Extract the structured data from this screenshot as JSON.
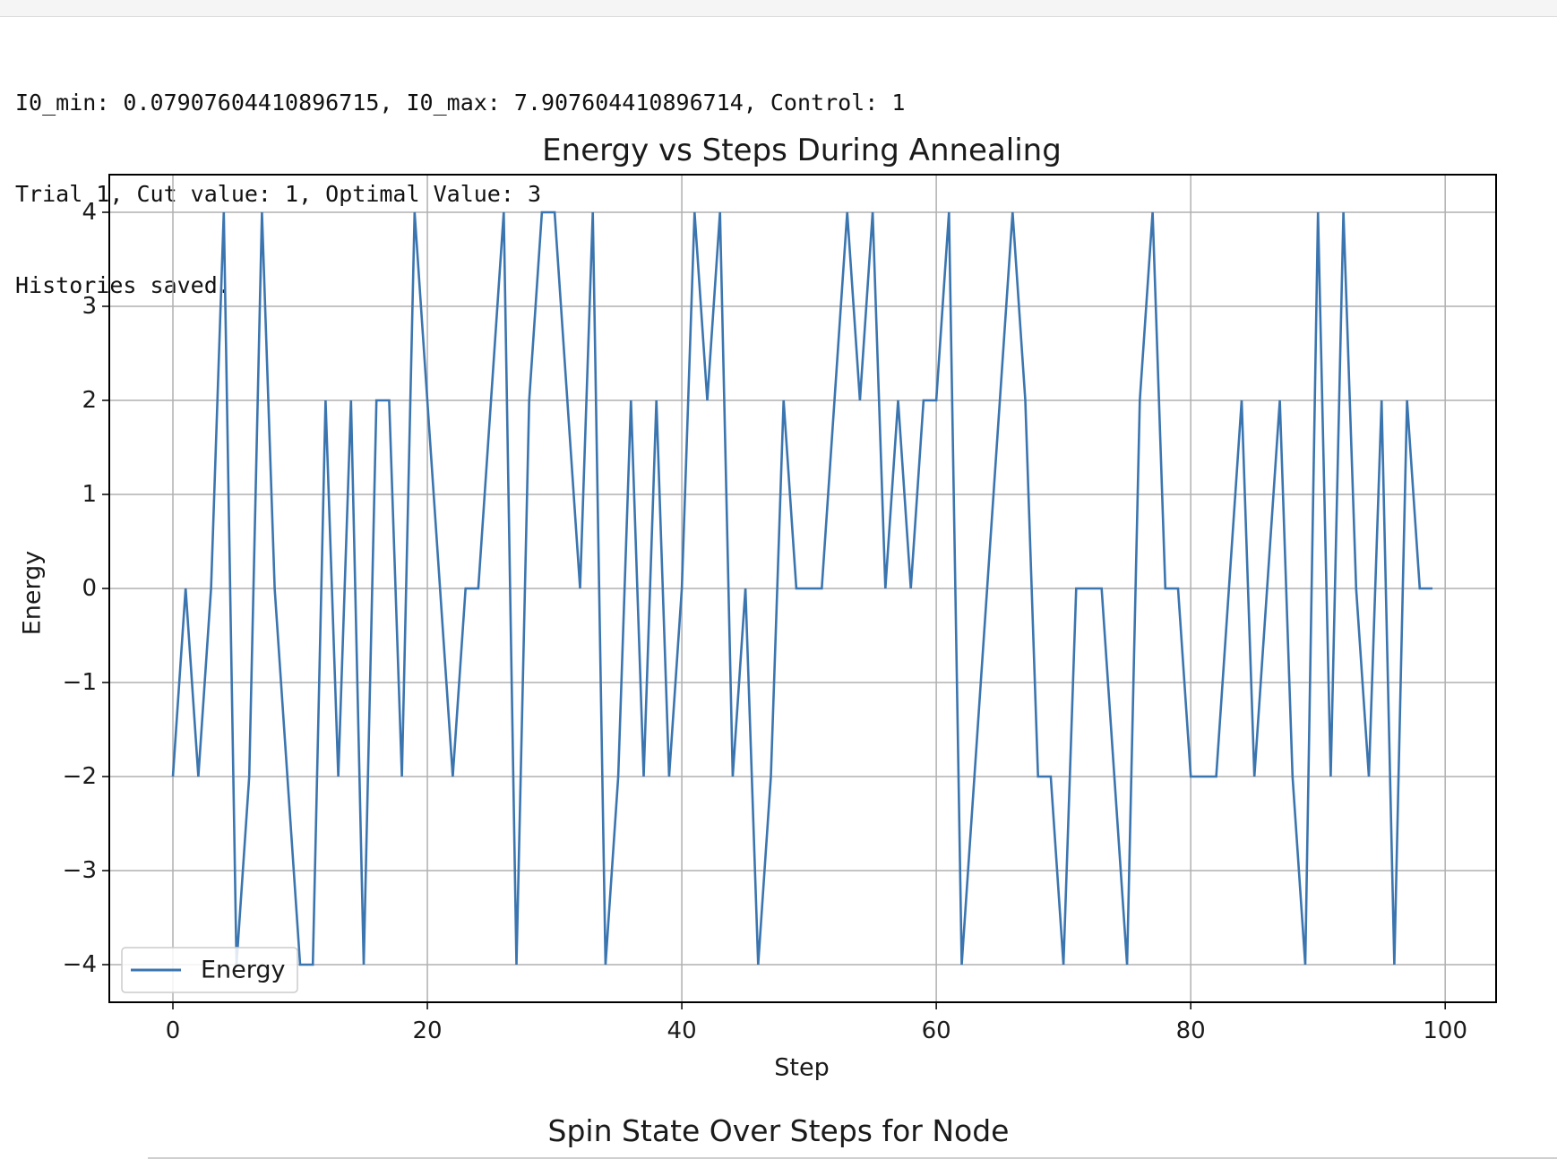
{
  "console": {
    "lines": [
      "I0_min: 0.07907604410896715, I0_max: 7.907604410896714, Control: 1",
      "Trial 1, Cut value: 1, Optimal Value: 3",
      "Histories saved."
    ]
  },
  "next_plot_title": "Spin State Over Steps for Node",
  "colors": {
    "line": "#3b75af",
    "grid": "#b0b0b0",
    "axes": "#000000"
  },
  "chart_data": {
    "type": "line",
    "title": "Energy vs Steps During Annealing",
    "xlabel": "Step",
    "ylabel": "Energy",
    "xlim": [
      -5,
      104
    ],
    "ylim": [
      -4.4,
      4.4
    ],
    "xticks": [
      0,
      20,
      40,
      60,
      80,
      100
    ],
    "xtick_labels": [
      "0",
      "20",
      "40",
      "60",
      "80",
      "100"
    ],
    "yticks": [
      4,
      3,
      2,
      1,
      0,
      -1,
      -2,
      -3,
      -4
    ],
    "ytick_labels": [
      "4",
      "3",
      "2",
      "1",
      "0",
      "−1",
      "−2",
      "−3",
      "−4"
    ],
    "grid": true,
    "legend": {
      "position": "lower-left",
      "entries": [
        "Energy"
      ]
    },
    "series": [
      {
        "name": "Energy",
        "x": [
          0,
          1,
          2,
          3,
          4,
          5,
          6,
          7,
          8,
          9,
          10,
          11,
          12,
          13,
          14,
          15,
          16,
          17,
          18,
          19,
          20,
          21,
          22,
          23,
          24,
          25,
          26,
          27,
          28,
          29,
          30,
          31,
          32,
          33,
          34,
          35,
          36,
          37,
          38,
          39,
          40,
          41,
          42,
          43,
          44,
          45,
          46,
          47,
          48,
          49,
          50,
          51,
          52,
          53,
          54,
          55,
          56,
          57,
          58,
          59,
          60,
          61,
          62,
          63,
          64,
          65,
          66,
          67,
          68,
          69,
          70,
          71,
          72,
          73,
          74,
          75,
          76,
          77,
          78,
          79,
          80,
          81,
          82,
          83,
          84,
          85,
          86,
          87,
          88,
          89,
          90,
          91,
          92,
          93,
          94,
          95,
          96,
          97,
          98,
          99
        ],
        "values": [
          -2,
          0,
          -2,
          0,
          4,
          -4,
          -2,
          4,
          0,
          -2,
          -4,
          -4,
          2,
          -2,
          2,
          -4,
          2,
          2,
          -2,
          4,
          2,
          0,
          -2,
          0,
          0,
          2,
          4,
          -4,
          2,
          4,
          4,
          2,
          0,
          4,
          -4,
          -2,
          2,
          -2,
          2,
          -2,
          0,
          4,
          2,
          4,
          -2,
          0,
          -4,
          -2,
          2,
          0,
          0,
          0,
          2,
          4,
          2,
          4,
          0,
          2,
          0,
          2,
          2,
          4,
          -4,
          -2,
          0,
          2,
          4,
          2,
          -2,
          -2,
          -4,
          0,
          0,
          0,
          -2,
          -4,
          2,
          4,
          0,
          0,
          -2,
          -2,
          -2,
          0,
          2,
          -2,
          0,
          2,
          -2,
          -4,
          4,
          -2,
          4,
          0,
          -2,
          2,
          -4,
          2,
          0,
          0
        ]
      }
    ]
  }
}
